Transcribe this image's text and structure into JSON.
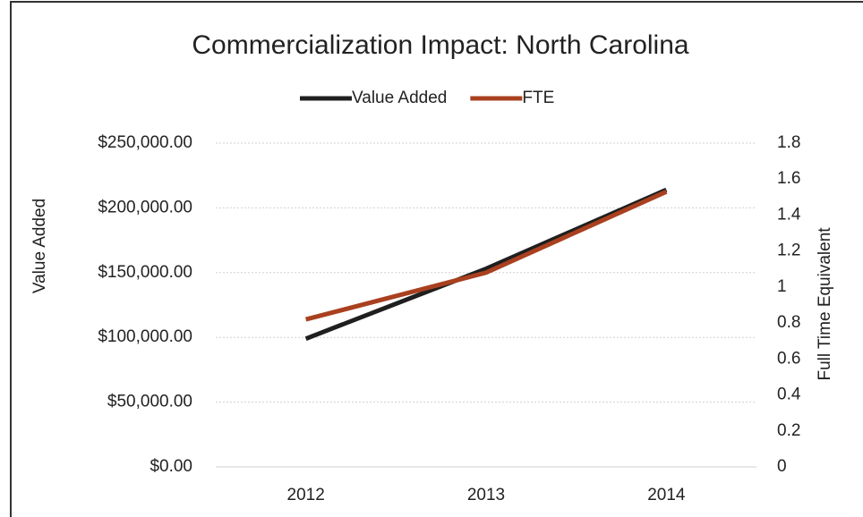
{
  "chart_data": {
    "type": "line",
    "title": "Commercialization Impact: North Carolina",
    "categories": [
      "2012",
      "2013",
      "2014"
    ],
    "series": [
      {
        "name": "Value Added",
        "color": "#1f1f1f",
        "values": [
          99000,
          153000,
          214000
        ]
      },
      {
        "name": "FTE",
        "color": "#a9401f",
        "values": [
          0.82,
          1.08,
          1.53
        ],
        "axis": "y2"
      }
    ],
    "ylabel": "Value Added",
    "y2label": "Full Time Equivalent",
    "ylim": [
      0,
      250000
    ],
    "yticks": [
      {
        "value": 0,
        "label": "$0.00"
      },
      {
        "value": 50000,
        "label": "$50,000.00"
      },
      {
        "value": 100000,
        "label": "$100,000.00"
      },
      {
        "value": 150000,
        "label": "$150,000.00"
      },
      {
        "value": 200000,
        "label": "$200,000.00"
      },
      {
        "value": 250000,
        "label": "$250,000.00"
      }
    ],
    "y2lim": [
      0,
      1.8
    ],
    "y2ticks": [
      0,
      0.2,
      0.4,
      0.6,
      0.8,
      1,
      1.2,
      1.4,
      1.6,
      1.8
    ],
    "grid": true,
    "legend": "top"
  }
}
